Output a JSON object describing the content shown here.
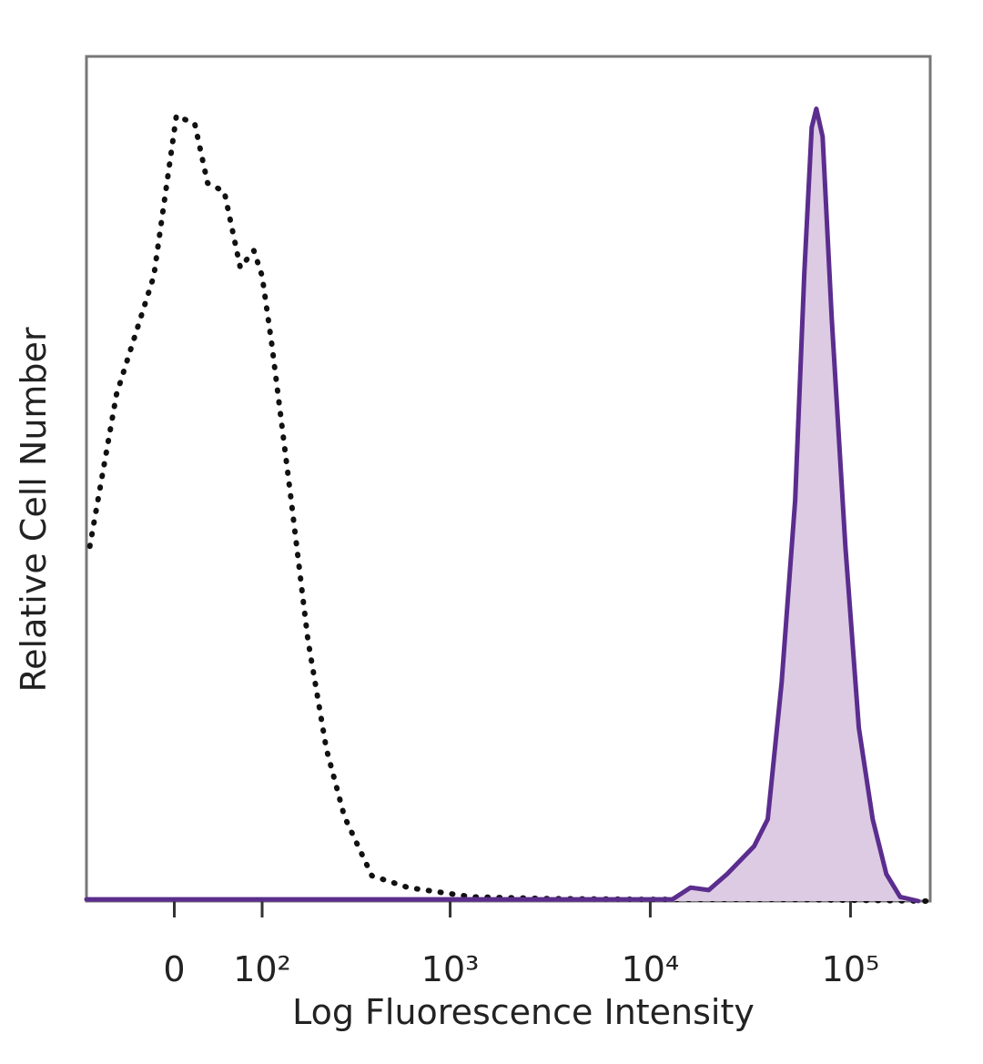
{
  "chart_data": {
    "type": "histogram-overlay",
    "x_label": "Log Fluorescence Intensity",
    "y_label": "Relative Cell Number",
    "xscale": "biexponential",
    "xlim": [
      -100,
      250000
    ],
    "xticks": [
      0,
      {
        "value": 100,
        "label": "10²"
      },
      {
        "value": 1000,
        "label": "10³"
      },
      {
        "value": 10000,
        "label": "10⁴"
      },
      {
        "value": 100000,
        "label": "10⁵"
      }
    ],
    "ylim": [
      0,
      100
    ],
    "series": [
      {
        "color": "#111111",
        "line_style": "dotted",
        "fill": "none",
        "x": [
          -95,
          -60,
          -20,
          2,
          20,
          33,
          51,
          70,
          88,
          100,
          115,
          149,
          186,
          234,
          291,
          403,
          617,
          1285,
          2966,
          8500,
          40800,
          242000
        ],
        "values": [
          42,
          60,
          74,
          93,
          92,
          85,
          84,
          75,
          77,
          74,
          66,
          48,
          31,
          18,
          10,
          3,
          1.6,
          0.5,
          0.3,
          0.2,
          0.2,
          0
        ]
      },
      {
        "color": "#5b2d8e",
        "line_style": "solid",
        "fill": "#dccbe3",
        "x": [
          -100,
          12900,
          15900,
          19600,
          24200,
          33000,
          38600,
          45300,
          52900,
          58800,
          64000,
          67500,
          72600,
          80600,
          94300,
          110000,
          129000,
          151000,
          177000,
          218000
        ],
        "values": [
          0.2,
          0.2,
          1.6,
          1.3,
          3.2,
          6.5,
          9.7,
          25.9,
          47.4,
          74.4,
          91.6,
          93.8,
          90.5,
          69,
          42,
          20.5,
          9.7,
          3.2,
          0.5,
          0
        ]
      }
    ]
  }
}
